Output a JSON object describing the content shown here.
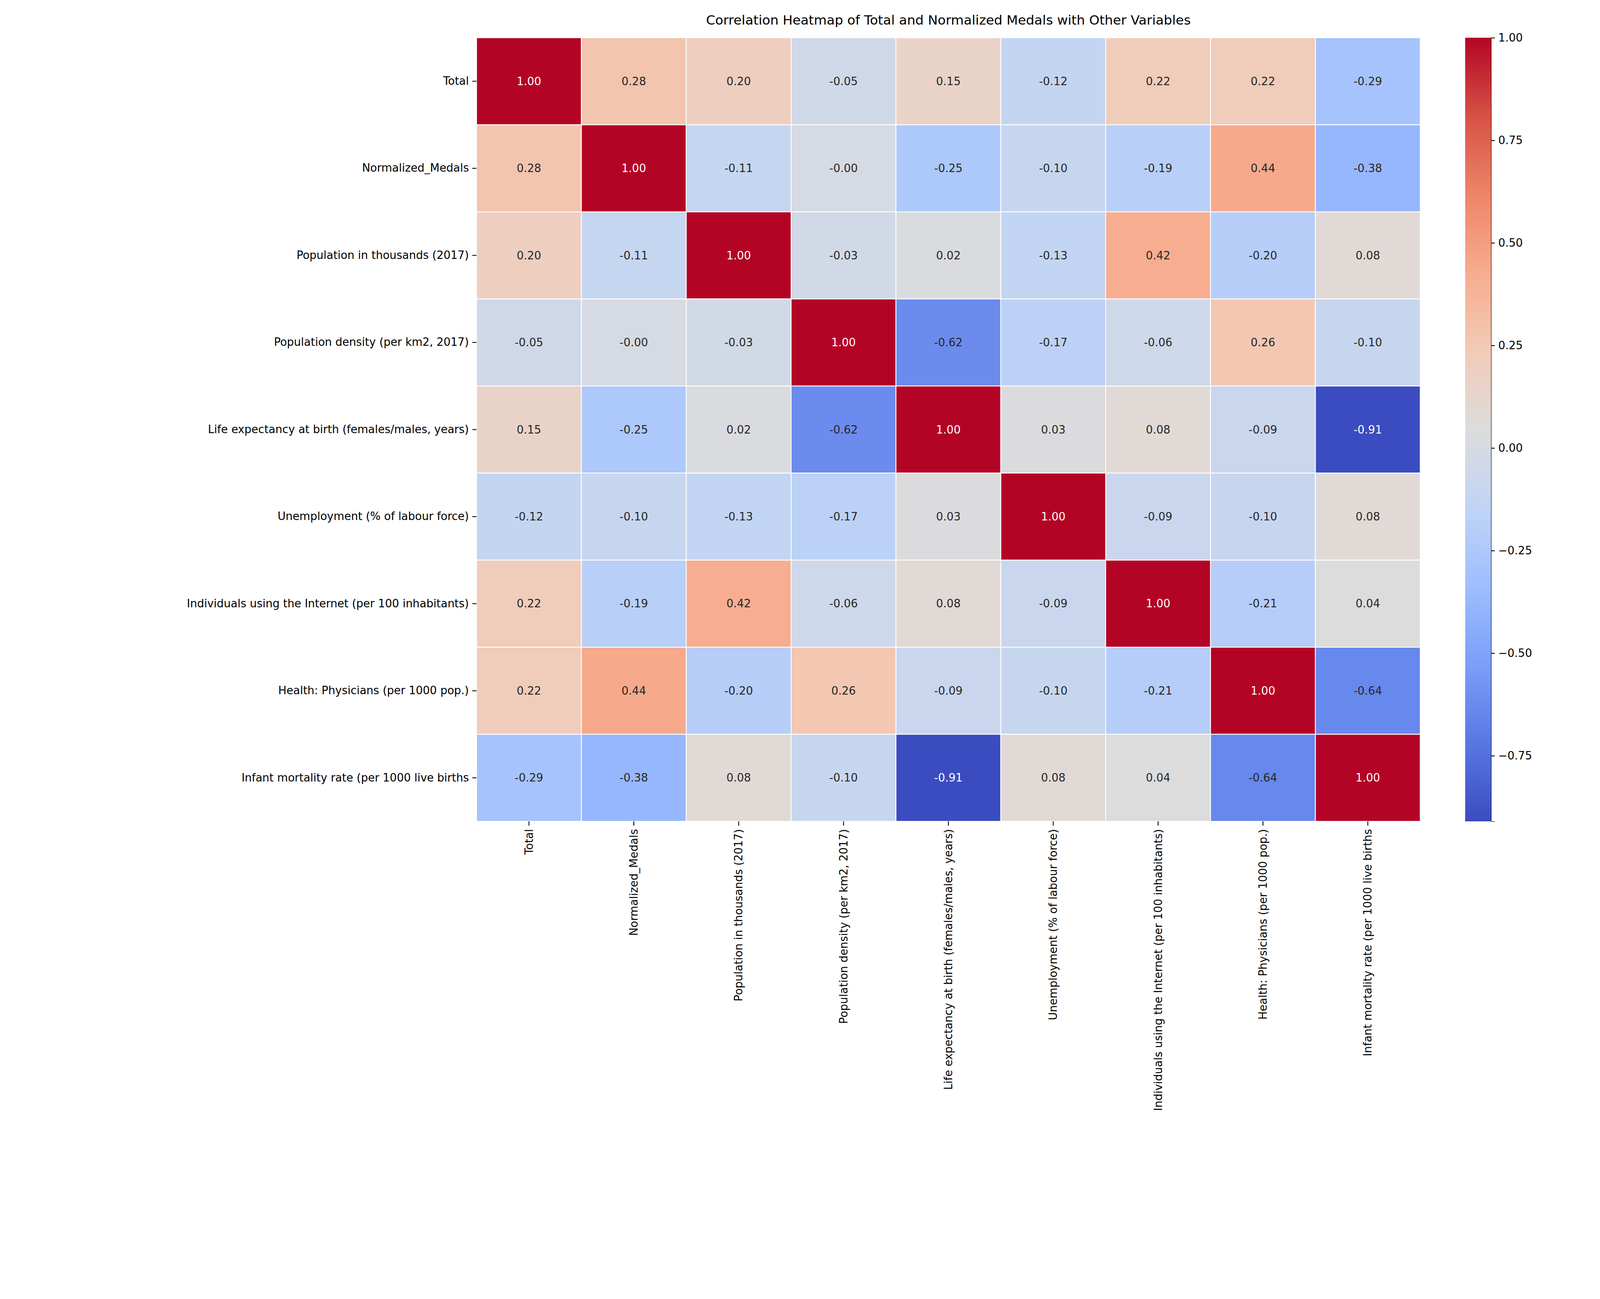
{
  "chart_data": {
    "type": "heatmap",
    "title": "Correlation Heatmap of Total and Normalized Medals with Other Variables",
    "categories": [
      "Total",
      "Normalized_Medals",
      "Population in thousands (2017)",
      "Population density (per km2, 2017)",
      "Life expectancy at birth (females/males, years)",
      "Unemployment (% of labour force)",
      "Individuals using the Internet (per 100 inhabitants)",
      "Health: Physicians (per 1000 pop.)",
      "Infant mortality rate (per 1000 live births"
    ],
    "values": [
      [
        1.0,
        0.28,
        0.2,
        -0.05,
        0.15,
        -0.12,
        0.22,
        0.22,
        -0.29
      ],
      [
        0.28,
        1.0,
        -0.11,
        -0.001,
        -0.25,
        -0.1,
        -0.19,
        0.44,
        -0.38
      ],
      [
        0.2,
        -0.11,
        1.0,
        -0.03,
        0.02,
        -0.13,
        0.42,
        -0.2,
        0.08
      ],
      [
        -0.05,
        -0.001,
        -0.03,
        1.0,
        -0.62,
        -0.17,
        -0.06,
        0.26,
        -0.1
      ],
      [
        0.15,
        -0.25,
        0.02,
        -0.62,
        1.0,
        0.03,
        0.08,
        -0.09,
        -0.91
      ],
      [
        -0.12,
        -0.1,
        -0.13,
        -0.17,
        0.03,
        1.0,
        -0.09,
        -0.1,
        0.08
      ],
      [
        0.22,
        -0.19,
        0.42,
        -0.06,
        0.08,
        -0.09,
        1.0,
        -0.21,
        0.04
      ],
      [
        0.22,
        0.44,
        -0.2,
        0.26,
        -0.09,
        -0.1,
        -0.21,
        1.0,
        -0.64
      ],
      [
        -0.29,
        -0.38,
        0.08,
        -0.1,
        -0.91,
        0.08,
        0.04,
        -0.64,
        1.0
      ]
    ],
    "value_labels": [
      [
        "1.00",
        "0.28",
        "0.20",
        "-0.05",
        "0.15",
        "-0.12",
        "0.22",
        "0.22",
        "-0.29"
      ],
      [
        "0.28",
        "1.00",
        "-0.11",
        "-0.00",
        "-0.25",
        "-0.10",
        "-0.19",
        "0.44",
        "-0.38"
      ],
      [
        "0.20",
        "-0.11",
        "1.00",
        "-0.03",
        "0.02",
        "-0.13",
        "0.42",
        "-0.20",
        "0.08"
      ],
      [
        "-0.05",
        "-0.00",
        "-0.03",
        "1.00",
        "-0.62",
        "-0.17",
        "-0.06",
        "0.26",
        "-0.10"
      ],
      [
        "0.15",
        "-0.25",
        "0.02",
        "-0.62",
        "1.00",
        "0.03",
        "0.08",
        "-0.09",
        "-0.91"
      ],
      [
        "-0.12",
        "-0.10",
        "-0.13",
        "-0.17",
        "0.03",
        "1.00",
        "-0.09",
        "-0.10",
        "0.08"
      ],
      [
        "0.22",
        "-0.19",
        "0.42",
        "-0.06",
        "0.08",
        "-0.09",
        "1.00",
        "-0.21",
        "0.04"
      ],
      [
        "0.22",
        "0.44",
        "-0.20",
        "0.26",
        "-0.09",
        "-0.10",
        "-0.21",
        "1.00",
        "-0.64"
      ],
      [
        "-0.29",
        "-0.38",
        "0.08",
        "-0.10",
        "-0.91",
        "0.08",
        "0.04",
        "-0.64",
        "1.00"
      ]
    ],
    "data_labels": true,
    "colorbar": {
      "range": [
        -0.91,
        1.0
      ],
      "ticks": [
        {
          "value": -0.75,
          "label": "−0.75"
        },
        {
          "value": -0.5,
          "label": "−0.50"
        },
        {
          "value": -0.25,
          "label": "−0.25"
        },
        {
          "value": 0,
          "label": "0.00"
        },
        {
          "value": 0.25,
          "label": "0.25"
        },
        {
          "value": 0.5,
          "label": "0.50"
        },
        {
          "value": 0.75,
          "label": "0.75"
        },
        {
          "value": 1.0,
          "label": "1.00"
        }
      ]
    }
  }
}
